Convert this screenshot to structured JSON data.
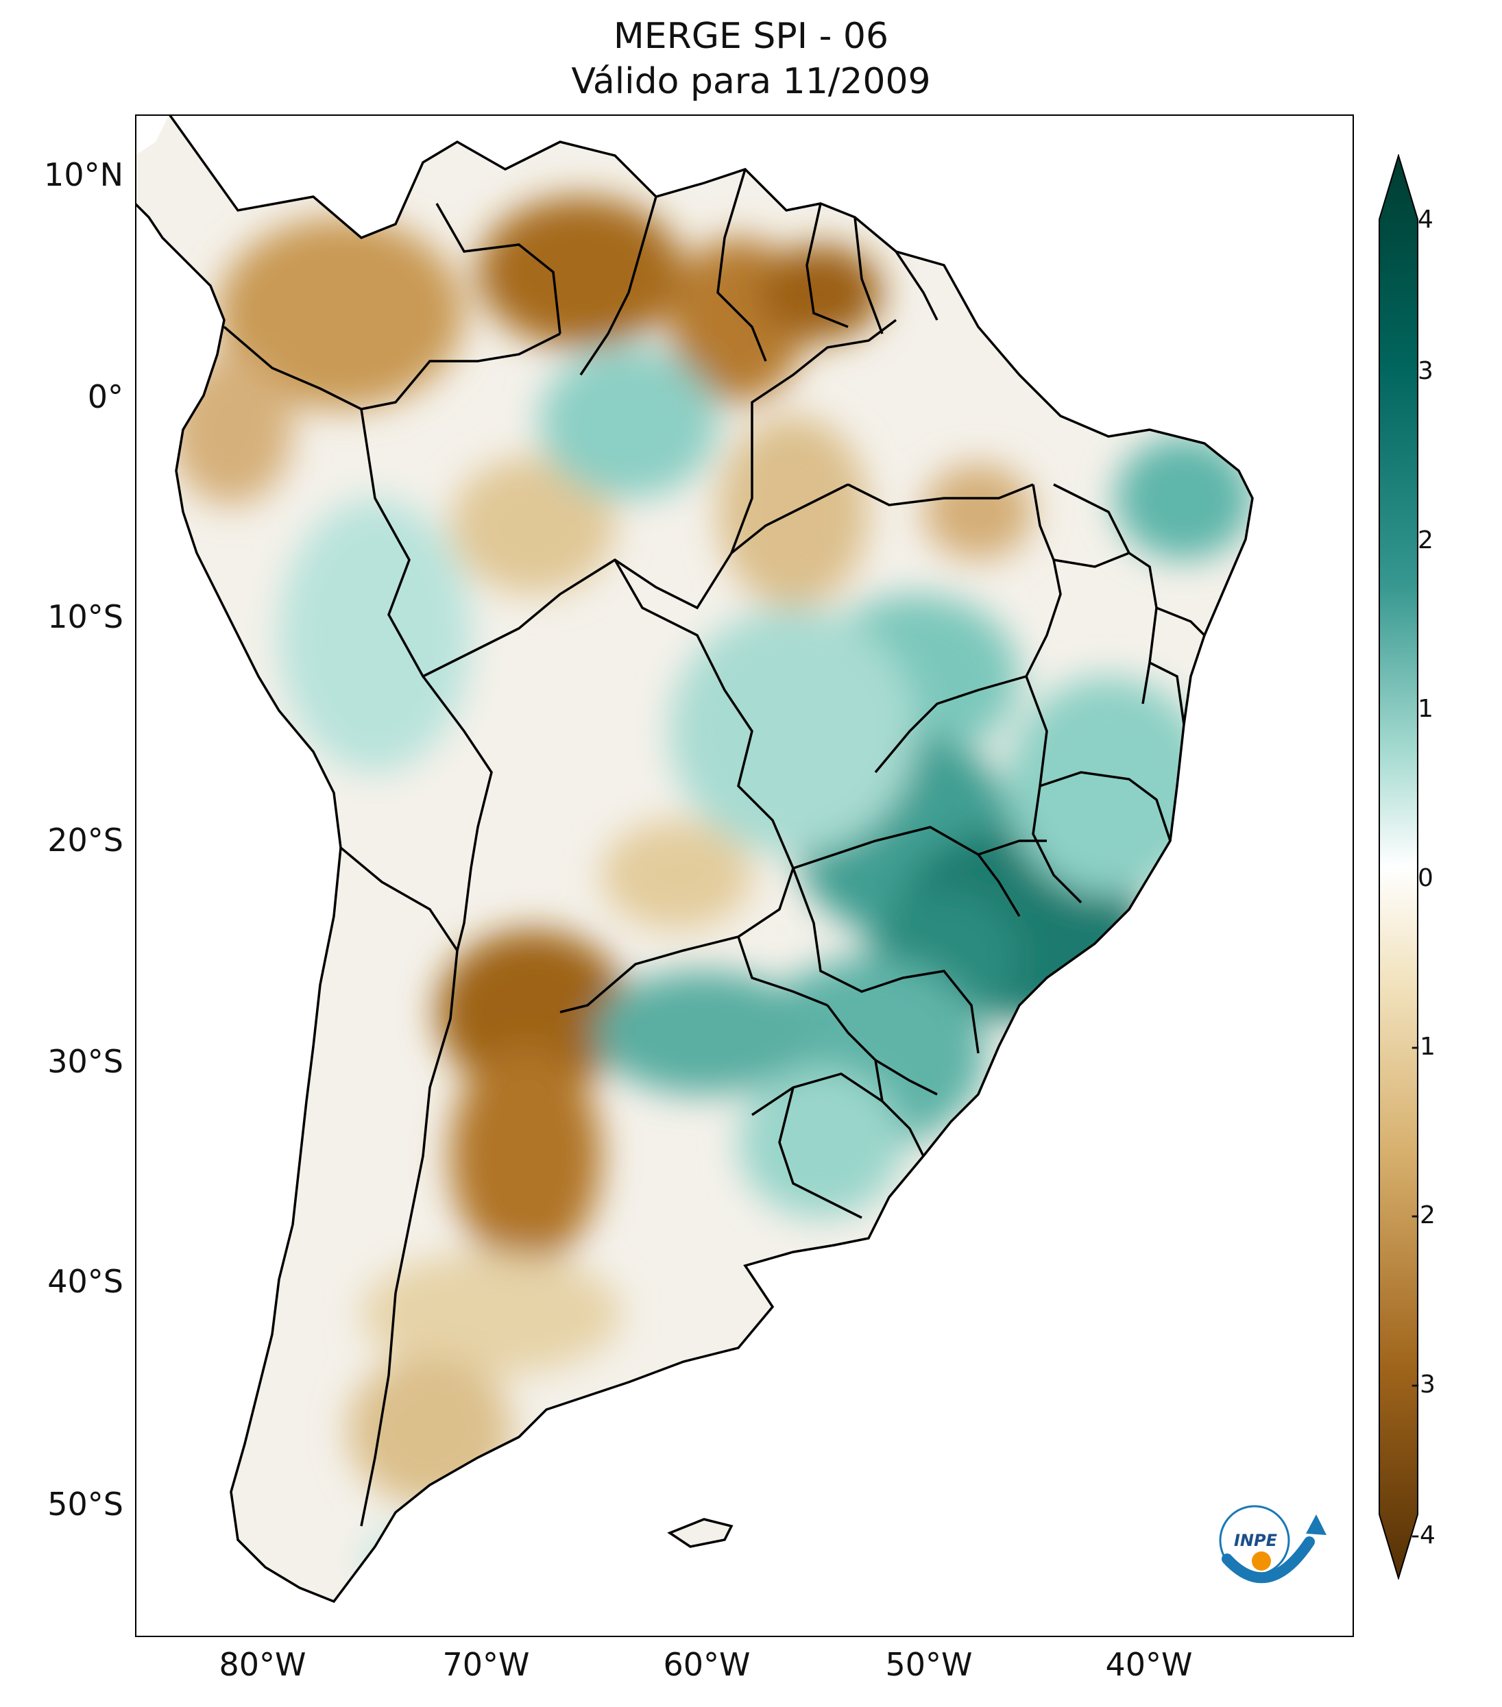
{
  "title": {
    "line1": "MERGE   SPI - 06",
    "line2": "Válido para 11/2009"
  },
  "map": {
    "type": "spi-choropleth",
    "region": "South America",
    "lon_range": [
      -85,
      -30
    ],
    "lat_range": [
      -56,
      13
    ],
    "lat_ticks": [
      "10°N",
      "0°",
      "10°S",
      "20°S",
      "30°S",
      "40°S",
      "50°S"
    ],
    "lon_ticks": [
      "80°W",
      "70°W",
      "60°W",
      "50°W",
      "40°W"
    ]
  },
  "colorbar": {
    "ticks": [
      "4",
      "3",
      "2",
      "1",
      "0",
      "-1",
      "-2",
      "-3",
      "-4"
    ],
    "min": -4,
    "max": 4,
    "colors": {
      "dry_extreme": "#543005",
      "dry": "#bf812d",
      "neutral": "#ffffff",
      "wet": "#35978f",
      "wet_extreme": "#003c30"
    }
  },
  "logo": {
    "text": "INPE"
  }
}
